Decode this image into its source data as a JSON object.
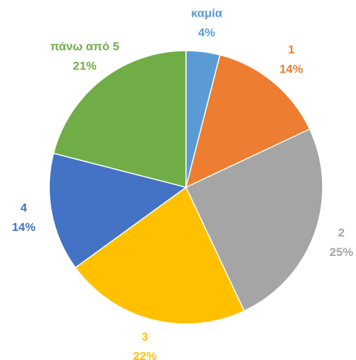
{
  "chart_data": {
    "type": "pie",
    "categories": [
      "καμία",
      "1",
      "2",
      "3",
      "4",
      "πάνω από 5"
    ],
    "values": [
      4,
      14,
      25,
      22,
      14,
      21
    ],
    "value_labels": [
      "4%",
      "14%",
      "25%",
      "22%",
      "14%",
      "21%"
    ],
    "colors": [
      "#5b9bd5",
      "#ed7d31",
      "#a5a5a5",
      "#ffc000",
      "#4472c4",
      "#70ad47"
    ]
  }
}
